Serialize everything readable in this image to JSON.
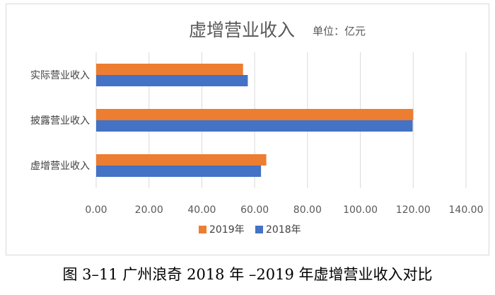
{
  "chart_data": {
    "type": "bar",
    "orientation": "horizontal",
    "title": "虚增营业收入",
    "unit_label": "单位：亿元",
    "categories": [
      "实际营业收入",
      "披露营业收入",
      "虚增营业收入"
    ],
    "series": [
      {
        "name": "2019年",
        "values": [
          55.6,
          120.0,
          64.4
        ],
        "color": "#ED7D31"
      },
      {
        "name": "2018年",
        "values": [
          57.4,
          119.8,
          62.4
        ],
        "color": "#4472C4"
      }
    ],
    "xlim": [
      0,
      140
    ],
    "ticks": [
      "0.00",
      "20.00",
      "40.00",
      "60.00",
      "80.00",
      "100.00",
      "120.00",
      "140.00"
    ],
    "tick_values": [
      0,
      20,
      40,
      60,
      80,
      100,
      120,
      140
    ],
    "grid": true,
    "legend_position": "bottom"
  },
  "caption": "图 3–11 广州浪奇 2018 年 –2019 年虚增营业收入对比"
}
